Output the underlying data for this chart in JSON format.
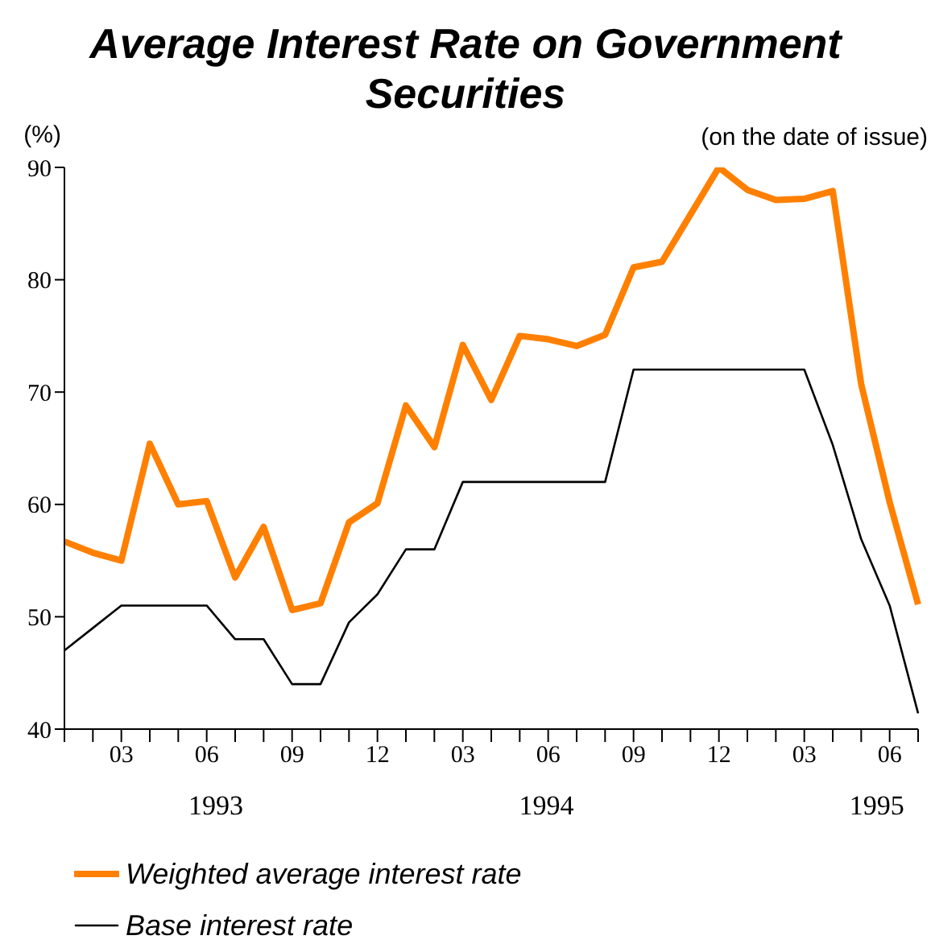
{
  "chart_data": {
    "type": "line",
    "title": "Average Interest Rate on Government Securities",
    "ylabel": "(%)",
    "annotations": [
      "(on the date of issue)",
      "1993",
      "1994",
      "1995"
    ],
    "categories": [
      null,
      null,
      "03",
      null,
      null,
      "06",
      null,
      null,
      "09",
      null,
      null,
      "12",
      null,
      null,
      "03",
      null,
      null,
      "06",
      null,
      null,
      "09",
      null,
      null,
      "12",
      null,
      null,
      "03",
      null,
      null,
      "06",
      null
    ],
    "series": [
      {
        "name": "Weighted average interest rate",
        "color": "#ff8000",
        "values": [
          56.7,
          55.7,
          55.0,
          65.4,
          60.0,
          60.3,
          53.5,
          58.0,
          50.6,
          51.2,
          58.4,
          60.1,
          68.8,
          65.1,
          74.2,
          69.3,
          75.0,
          74.7,
          74.1,
          75.1,
          81.1,
          81.6,
          85.8,
          90.0,
          88.0,
          87.1,
          87.2,
          87.9,
          70.7,
          60.2,
          51.1
        ]
      },
      {
        "name": "Base interest rate",
        "color": "#000000",
        "values": [
          47,
          49,
          51,
          51,
          51,
          51,
          48,
          48,
          44,
          44,
          49.5,
          52,
          56,
          56,
          62,
          62,
          62,
          62,
          62,
          62,
          72,
          72,
          72,
          72,
          72,
          72,
          72,
          65.3,
          56.9,
          51,
          41.4
        ]
      }
    ],
    "ylim": [
      40,
      90
    ],
    "yticks": [
      40,
      50,
      60,
      70,
      80,
      90
    ],
    "grid": false,
    "legend": "bottom left",
    "marker": "none",
    "line_style": "solid"
  }
}
